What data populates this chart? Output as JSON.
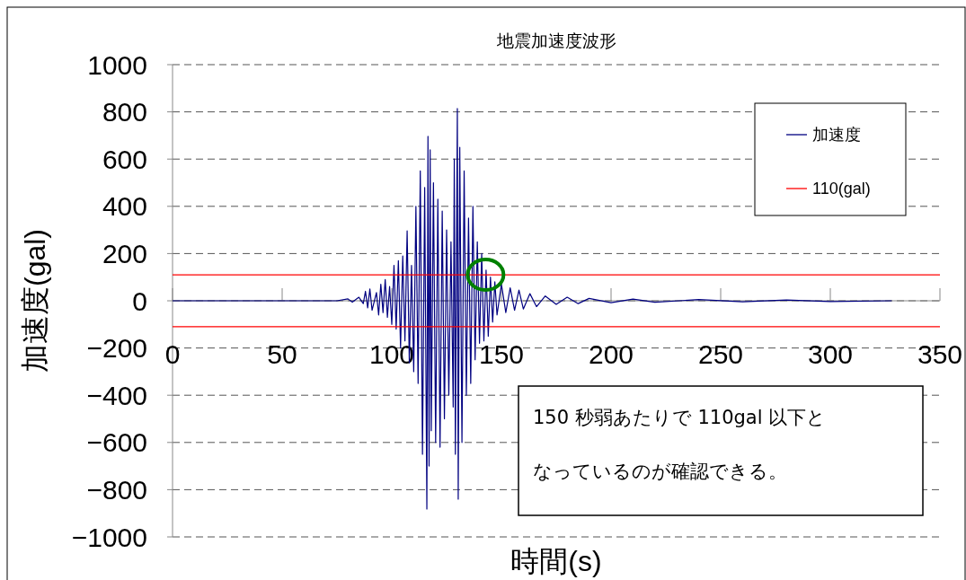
{
  "chart_data": {
    "type": "line",
    "title": "地震加速度波形",
    "xlabel": "時間(s)",
    "ylabel": "加速度(gal)",
    "xlim": [
      0,
      350
    ],
    "xticks": [
      0,
      50,
      100,
      150,
      200,
      250,
      300,
      350
    ],
    "ylim": [
      -1000,
      1000
    ],
    "yticks": [
      -1000,
      -800,
      -600,
      -400,
      -200,
      0,
      200,
      400,
      600,
      800,
      1000
    ],
    "grid": "y",
    "legend": "top right",
    "marker": "none",
    "line_style": "solid",
    "ref_lines": [
      {
        "axis": "y",
        "value": 110,
        "label": "110(gal)",
        "color": "#ff0000"
      },
      {
        "axis": "y",
        "value": -110,
        "label": null,
        "color": "#ff0000"
      }
    ],
    "annotations": [
      "150 秒弱あたりで 110gal 以下となっているのが確認できる。"
    ],
    "series": [
      {
        "name": "加速度",
        "color": "#000080",
        "x": [
          0,
          75,
          80,
          82,
          85,
          87,
          88,
          89,
          90,
          91,
          93,
          94,
          95,
          96,
          97,
          98,
          99,
          100,
          101,
          102,
          103,
          104,
          105,
          106,
          107,
          108,
          109,
          110,
          111,
          112,
          113,
          114,
          115,
          116,
          116.5,
          117,
          117.5,
          118,
          119,
          120,
          121,
          122,
          123,
          124,
          125,
          126,
          127,
          128,
          128.5,
          129,
          129.9,
          130.3,
          131,
          132,
          133,
          134,
          135,
          136,
          137,
          138,
          139,
          140,
          141,
          142,
          143,
          144,
          145,
          146,
          147,
          148,
          150,
          152,
          154,
          156,
          158,
          160,
          163,
          166,
          170,
          175,
          180,
          185,
          190,
          200,
          210,
          220,
          240,
          260,
          280,
          300,
          328
        ],
        "values": [
          0,
          0,
          8,
          -6,
          15,
          -12,
          40,
          -30,
          50,
          -40,
          35,
          -60,
          70,
          -50,
          90,
          -70,
          60,
          -100,
          150,
          -120,
          170,
          -200,
          190,
          -170,
          296,
          -262,
          150,
          -300,
          400,
          -350,
          550,
          -650,
          480,
          -882,
          696,
          -700,
          639,
          -550,
          500,
          -600,
          430,
          -620,
          380,
          -500,
          300,
          -400,
          250,
          -450,
          600,
          -650,
          814,
          -840,
          650,
          -600,
          550,
          -400,
          350,
          -350,
          400,
          -250,
          250,
          -180,
          200,
          -170,
          130,
          -150,
          100,
          -90,
          80,
          -60,
          70,
          -50,
          55,
          -40,
          45,
          -35,
          30,
          -25,
          20,
          -15,
          15,
          -12,
          10,
          -8,
          7,
          -6,
          5,
          -4,
          3,
          -3,
          0
        ]
      }
    ]
  }
}
